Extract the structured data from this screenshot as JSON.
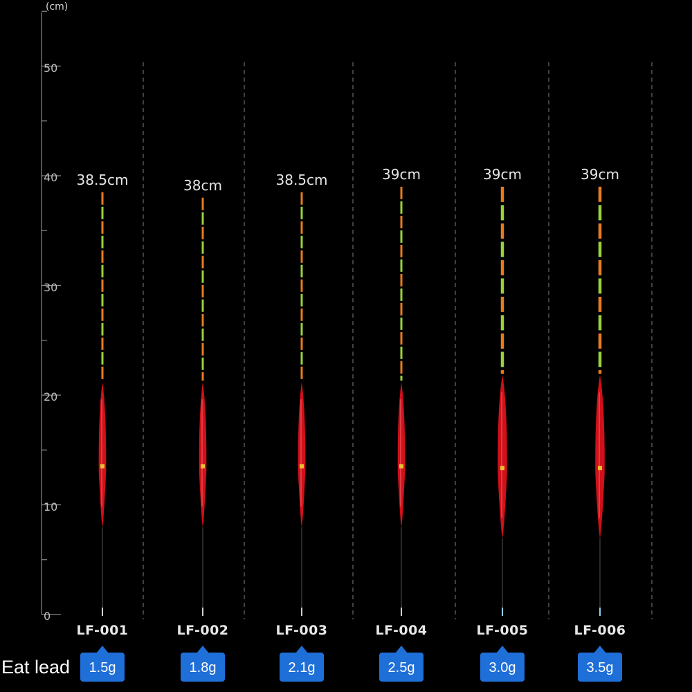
{
  "axis": {
    "unit": "(cm)",
    "ticks": [
      "50",
      "40",
      "30",
      "20",
      "10",
      "0"
    ],
    "range_cm": [
      0,
      50
    ]
  },
  "caption": "Eat lead",
  "floats": [
    {
      "model": "LF-001",
      "length": "38.5cm",
      "length_cm": 38.5,
      "weight": "1.5g",
      "body": "slim"
    },
    {
      "model": "LF-002",
      "length": "38cm",
      "length_cm": 38.0,
      "weight": "1.8g",
      "body": "slim"
    },
    {
      "model": "LF-003",
      "length": "38.5cm",
      "length_cm": 38.5,
      "weight": "2.1g",
      "body": "slim"
    },
    {
      "model": "LF-004",
      "length": "39cm",
      "length_cm": 39.0,
      "weight": "2.5g",
      "body": "slim"
    },
    {
      "model": "LF-005",
      "length": "39cm",
      "length_cm": 39.0,
      "weight": "3.0g",
      "body": "wide"
    },
    {
      "model": "LF-006",
      "length": "39cm",
      "length_cm": 39.0,
      "weight": "3.5g",
      "body": "wide"
    }
  ],
  "colors": {
    "background": "#000000",
    "body_red": "#d0101a",
    "tip_orange": "#e87c1e",
    "tip_green": "#9ad23a",
    "badge_blue": "#1f6fd8",
    "axis": "#8a8a8a"
  }
}
